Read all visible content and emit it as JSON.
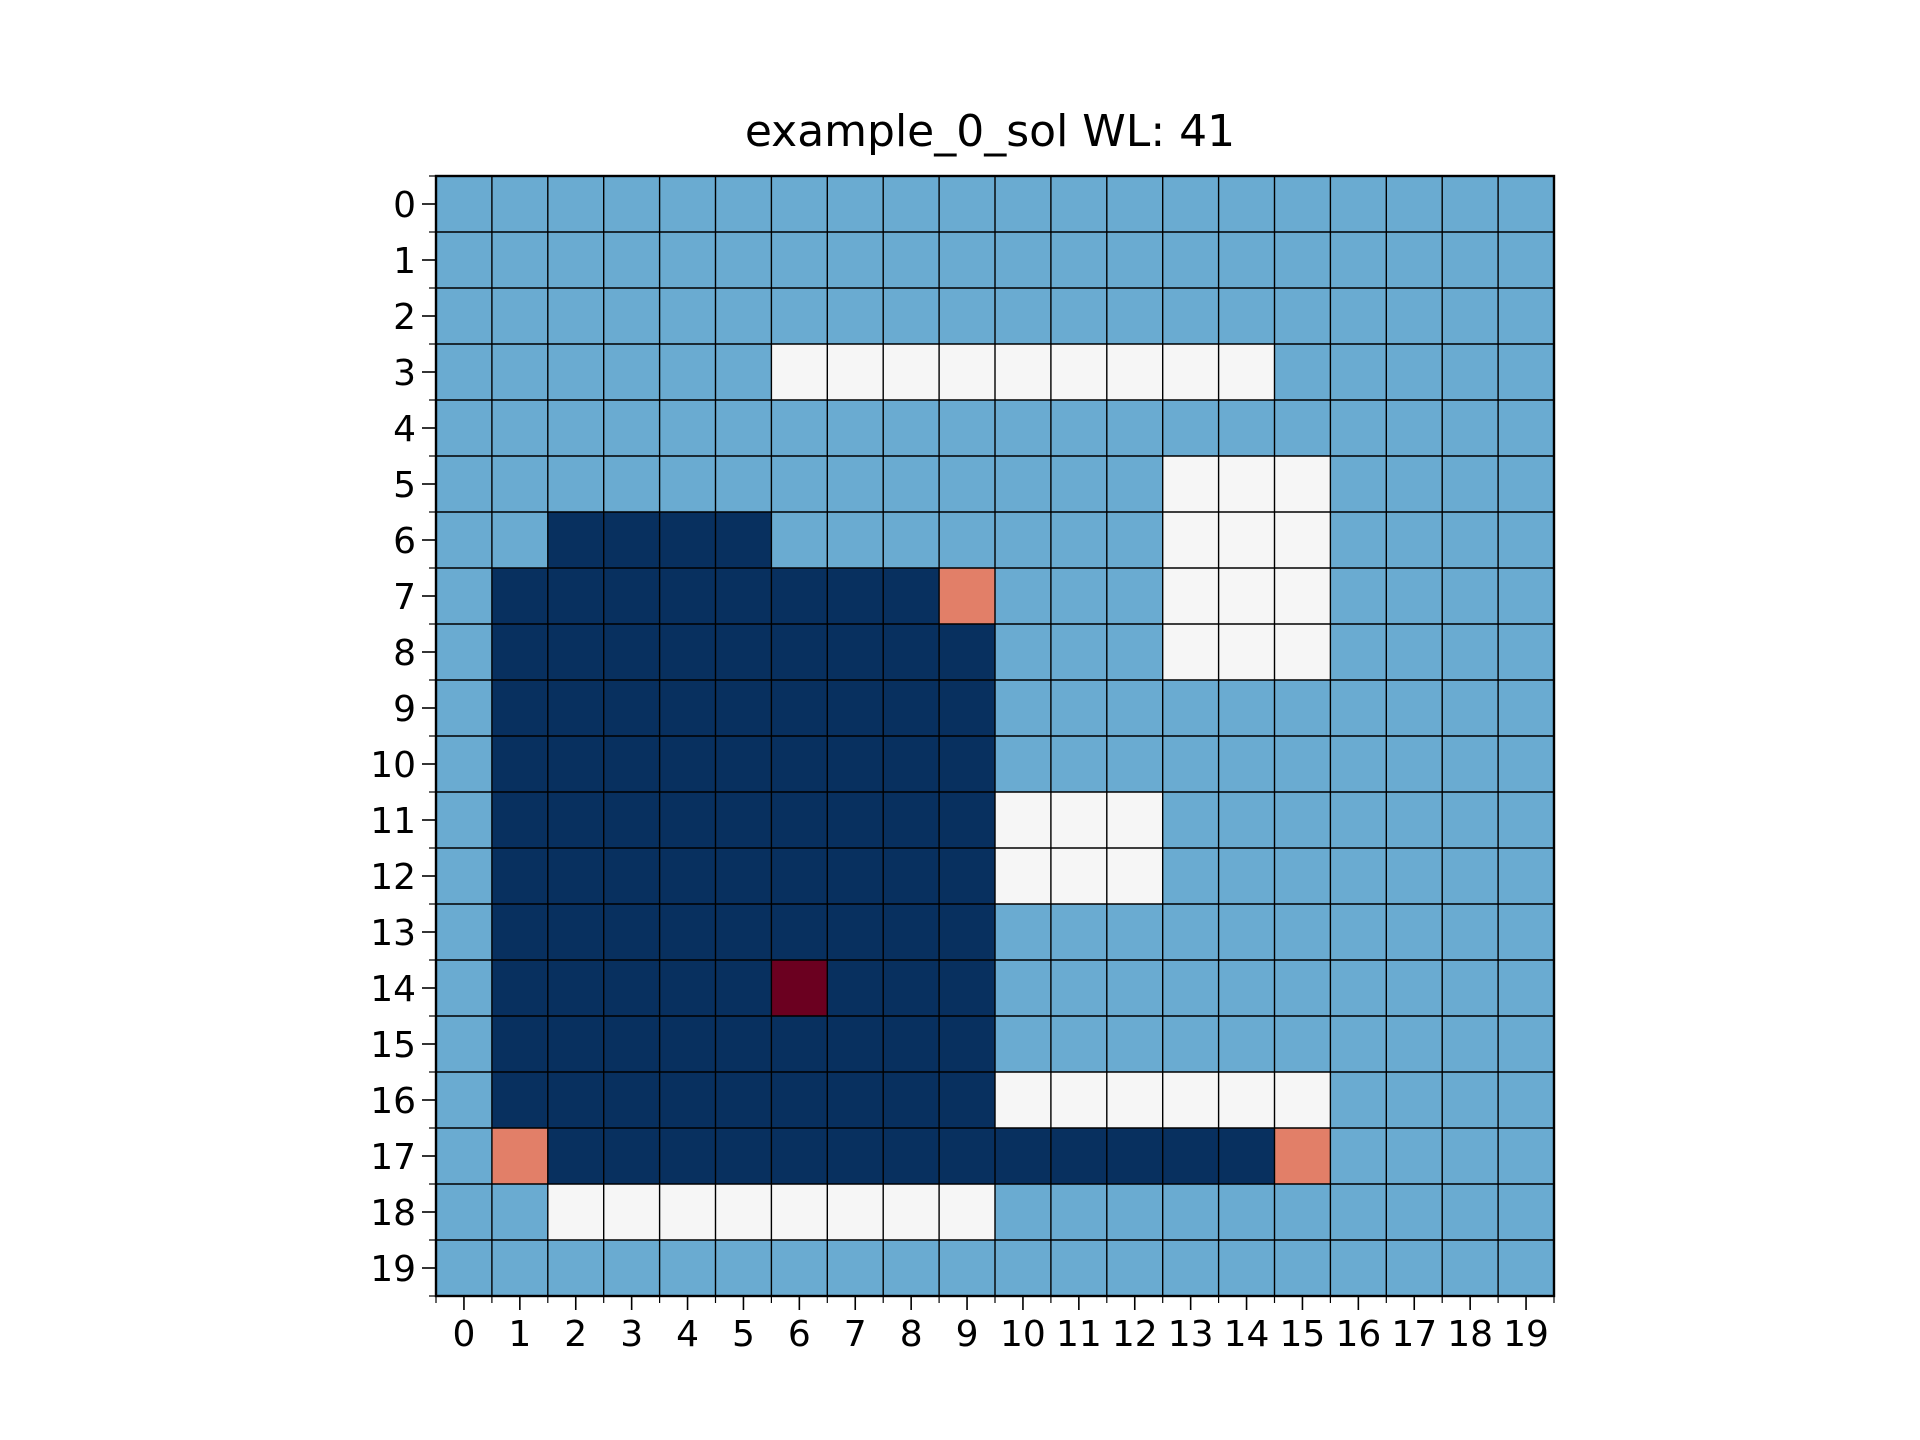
{
  "chart_data": {
    "type": "heatmap",
    "title": "example_0_sol WL: 41",
    "xlabel": "",
    "ylabel": "",
    "x_ticks": [
      0,
      1,
      2,
      3,
      4,
      5,
      6,
      7,
      8,
      9,
      10,
      11,
      12,
      13,
      14,
      15,
      16,
      17,
      18,
      19
    ],
    "y_ticks": [
      0,
      1,
      2,
      3,
      4,
      5,
      6,
      7,
      8,
      9,
      10,
      11,
      12,
      13,
      14,
      15,
      16,
      17,
      18,
      19
    ],
    "grid": true,
    "legend": "none",
    "palette": {
      "0": "#6aabd1",
      "1": "#f6f6f6",
      "2": "#08305f",
      "3": "#e27f68",
      "4": "#6b0020"
    },
    "cells": [
      [
        0,
        0,
        0,
        0,
        0,
        0,
        0,
        0,
        0,
        0,
        0,
        0,
        0,
        0,
        0,
        0,
        0,
        0,
        0,
        0
      ],
      [
        0,
        0,
        0,
        0,
        0,
        0,
        0,
        0,
        0,
        0,
        0,
        0,
        0,
        0,
        0,
        0,
        0,
        0,
        0,
        0
      ],
      [
        0,
        0,
        0,
        0,
        0,
        0,
        0,
        0,
        0,
        0,
        0,
        0,
        0,
        0,
        0,
        0,
        0,
        0,
        0,
        0
      ],
      [
        0,
        0,
        0,
        0,
        0,
        0,
        1,
        1,
        1,
        1,
        1,
        1,
        1,
        1,
        1,
        0,
        0,
        0,
        0,
        0
      ],
      [
        0,
        0,
        0,
        0,
        0,
        0,
        0,
        0,
        0,
        0,
        0,
        0,
        0,
        0,
        0,
        0,
        0,
        0,
        0,
        0
      ],
      [
        0,
        0,
        0,
        0,
        0,
        0,
        0,
        0,
        0,
        0,
        0,
        0,
        0,
        1,
        1,
        1,
        0,
        0,
        0,
        0
      ],
      [
        0,
        0,
        2,
        2,
        2,
        2,
        0,
        0,
        0,
        0,
        0,
        0,
        0,
        1,
        1,
        1,
        0,
        0,
        0,
        0
      ],
      [
        0,
        2,
        2,
        2,
        2,
        2,
        2,
        2,
        2,
        3,
        0,
        0,
        0,
        1,
        1,
        1,
        0,
        0,
        0,
        0
      ],
      [
        0,
        2,
        2,
        2,
        2,
        2,
        2,
        2,
        2,
        2,
        0,
        0,
        0,
        1,
        1,
        1,
        0,
        0,
        0,
        0
      ],
      [
        0,
        2,
        2,
        2,
        2,
        2,
        2,
        2,
        2,
        2,
        0,
        0,
        0,
        0,
        0,
        0,
        0,
        0,
        0,
        0
      ],
      [
        0,
        2,
        2,
        2,
        2,
        2,
        2,
        2,
        2,
        2,
        0,
        0,
        0,
        0,
        0,
        0,
        0,
        0,
        0,
        0
      ],
      [
        0,
        2,
        2,
        2,
        2,
        2,
        2,
        2,
        2,
        2,
        1,
        1,
        1,
        0,
        0,
        0,
        0,
        0,
        0,
        0
      ],
      [
        0,
        2,
        2,
        2,
        2,
        2,
        2,
        2,
        2,
        2,
        1,
        1,
        1,
        0,
        0,
        0,
        0,
        0,
        0,
        0
      ],
      [
        0,
        2,
        2,
        2,
        2,
        2,
        2,
        2,
        2,
        2,
        0,
        0,
        0,
        0,
        0,
        0,
        0,
        0,
        0,
        0
      ],
      [
        0,
        2,
        2,
        2,
        2,
        2,
        4,
        2,
        2,
        2,
        0,
        0,
        0,
        0,
        0,
        0,
        0,
        0,
        0,
        0
      ],
      [
        0,
        2,
        2,
        2,
        2,
        2,
        2,
        2,
        2,
        2,
        0,
        0,
        0,
        0,
        0,
        0,
        0,
        0,
        0,
        0
      ],
      [
        0,
        2,
        2,
        2,
        2,
        2,
        2,
        2,
        2,
        2,
        1,
        1,
        1,
        1,
        1,
        1,
        0,
        0,
        0,
        0
      ],
      [
        0,
        3,
        2,
        2,
        2,
        2,
        2,
        2,
        2,
        2,
        2,
        2,
        2,
        2,
        2,
        3,
        0,
        0,
        0,
        0
      ],
      [
        0,
        0,
        1,
        1,
        1,
        1,
        1,
        1,
        1,
        1,
        0,
        0,
        0,
        0,
        0,
        0,
        0,
        0,
        0,
        0
      ],
      [
        0,
        0,
        0,
        0,
        0,
        0,
        0,
        0,
        0,
        0,
        0,
        0,
        0,
        0,
        0,
        0,
        0,
        0,
        0,
        0
      ]
    ]
  }
}
